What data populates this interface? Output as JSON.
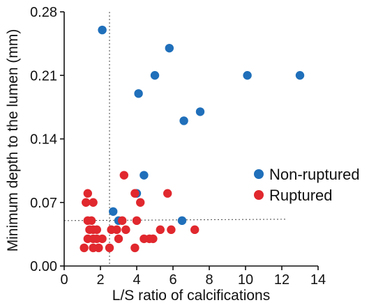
{
  "chart_data": {
    "type": "scatter",
    "title": "",
    "xlabel": "L/S ratio of calcifications",
    "ylabel": "Minimum depth to the lumen (mm)",
    "xlim": [
      0,
      14
    ],
    "ylim": [
      0,
      0.28
    ],
    "x_ticks": [
      "0",
      "2",
      "4",
      "6",
      "8",
      "10",
      "12",
      "14"
    ],
    "y_ticks": [
      "0.00",
      "0.07",
      "0.14",
      "0.21",
      "0.28"
    ],
    "legend_position": "right",
    "reference_lines": {
      "x": 2.5,
      "y": 0.05
    },
    "colors": {
      "Non-ruptured": "#1f6fba",
      "Ruptured": "#e0282e"
    },
    "series": [
      {
        "name": "Non-ruptured",
        "color": "#1f6fba",
        "points": [
          {
            "x": 2.1,
            "y": 0.26
          },
          {
            "x": 5.8,
            "y": 0.24
          },
          {
            "x": 5.0,
            "y": 0.21
          },
          {
            "x": 10.1,
            "y": 0.21
          },
          {
            "x": 13.0,
            "y": 0.21
          },
          {
            "x": 4.1,
            "y": 0.19
          },
          {
            "x": 7.5,
            "y": 0.17
          },
          {
            "x": 6.6,
            "y": 0.16
          },
          {
            "x": 4.4,
            "y": 0.1
          },
          {
            "x": 4.0,
            "y": 0.08
          },
          {
            "x": 2.7,
            "y": 0.06
          },
          {
            "x": 3.0,
            "y": 0.05
          },
          {
            "x": 6.5,
            "y": 0.05
          }
        ]
      },
      {
        "name": "Ruptured",
        "color": "#e0282e",
        "points": [
          {
            "x": 3.3,
            "y": 0.1
          },
          {
            "x": 1.3,
            "y": 0.08
          },
          {
            "x": 3.9,
            "y": 0.08
          },
          {
            "x": 5.7,
            "y": 0.08
          },
          {
            "x": 1.2,
            "y": 0.07
          },
          {
            "x": 1.6,
            "y": 0.07
          },
          {
            "x": 4.2,
            "y": 0.07
          },
          {
            "x": 1.3,
            "y": 0.05
          },
          {
            "x": 1.5,
            "y": 0.05
          },
          {
            "x": 3.2,
            "y": 0.05
          },
          {
            "x": 4.0,
            "y": 0.05
          },
          {
            "x": 1.4,
            "y": 0.04
          },
          {
            "x": 1.6,
            "y": 0.04
          },
          {
            "x": 1.8,
            "y": 0.04
          },
          {
            "x": 2.6,
            "y": 0.04
          },
          {
            "x": 2.9,
            "y": 0.04
          },
          {
            "x": 3.4,
            "y": 0.04
          },
          {
            "x": 5.3,
            "y": 0.04
          },
          {
            "x": 5.9,
            "y": 0.04
          },
          {
            "x": 7.2,
            "y": 0.04
          },
          {
            "x": 1.3,
            "y": 0.03
          },
          {
            "x": 1.6,
            "y": 0.03
          },
          {
            "x": 1.8,
            "y": 0.03
          },
          {
            "x": 2.1,
            "y": 0.03
          },
          {
            "x": 3.0,
            "y": 0.03
          },
          {
            "x": 4.4,
            "y": 0.03
          },
          {
            "x": 4.7,
            "y": 0.03
          },
          {
            "x": 4.9,
            "y": 0.03
          },
          {
            "x": 1.1,
            "y": 0.02
          },
          {
            "x": 1.6,
            "y": 0.02
          },
          {
            "x": 1.9,
            "y": 0.02
          },
          {
            "x": 2.5,
            "y": 0.02
          },
          {
            "x": 3.9,
            "y": 0.02
          }
        ]
      }
    ]
  }
}
